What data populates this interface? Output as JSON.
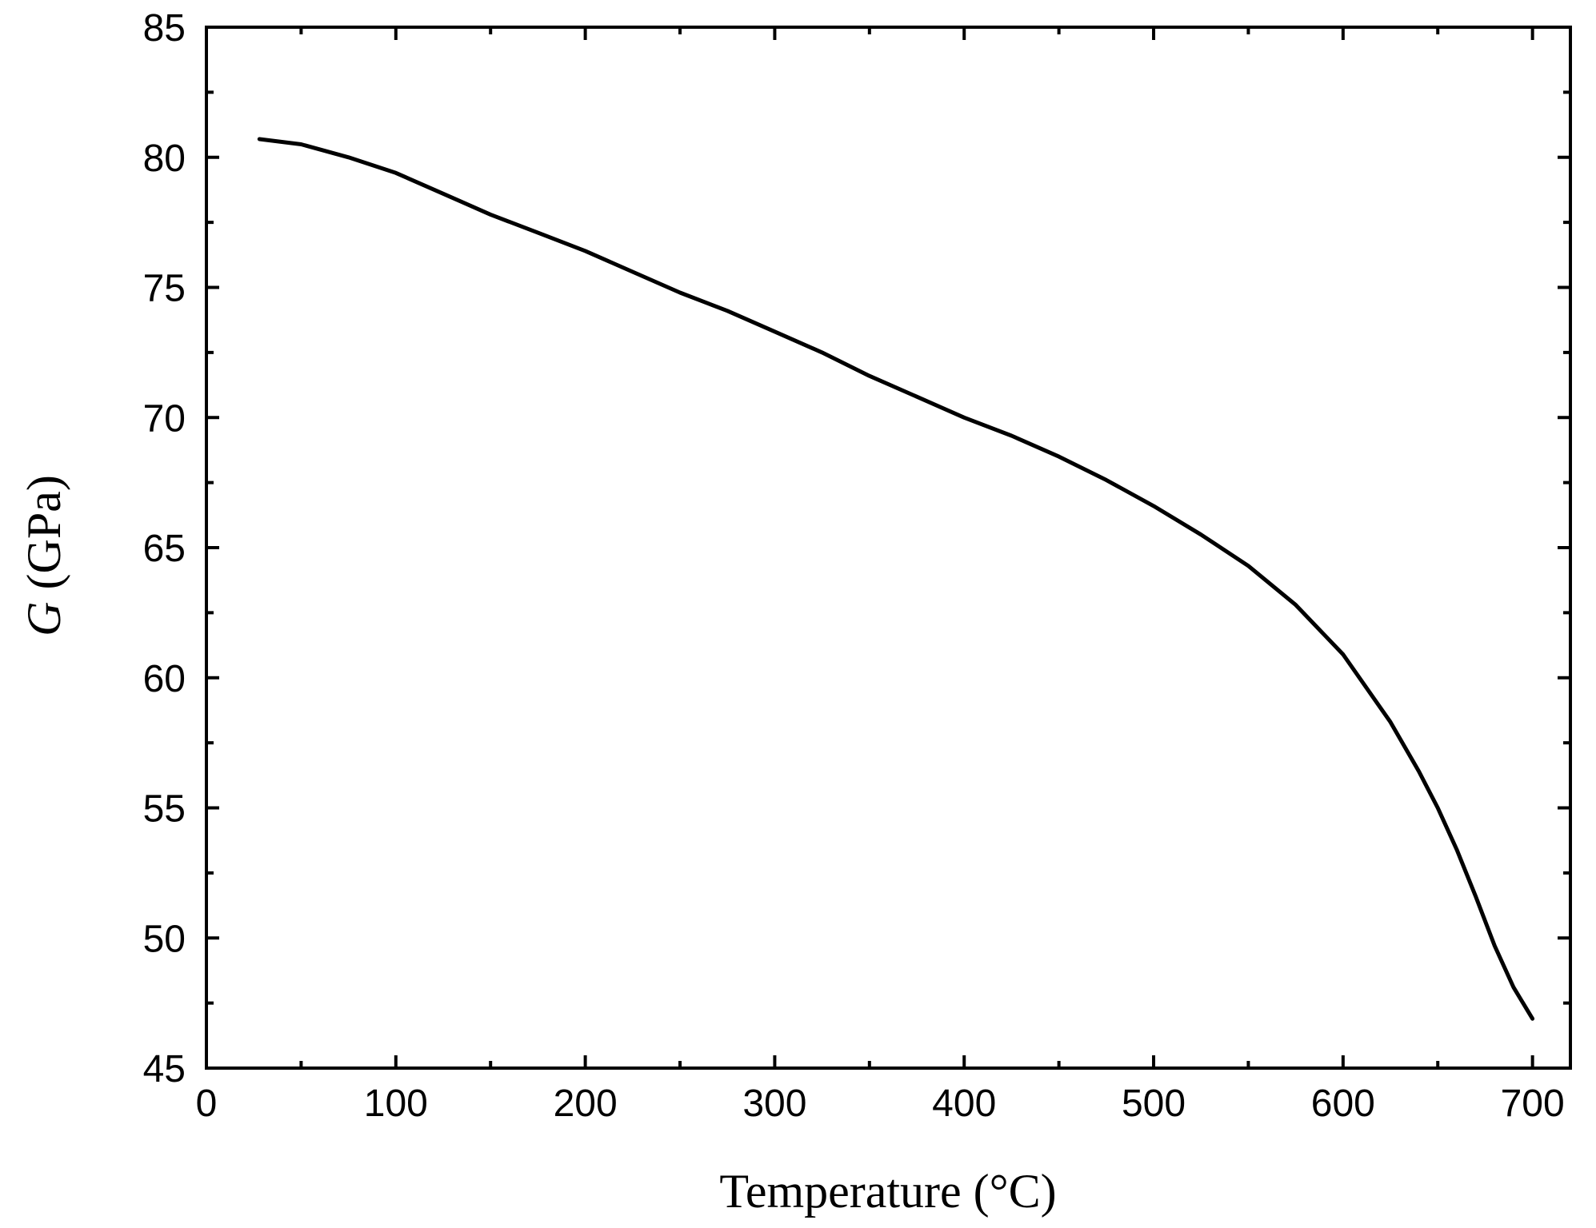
{
  "chart_data": {
    "type": "line",
    "title": "",
    "xlabel": "Temperature (°C)",
    "ylabel_symbol": "G",
    "ylabel_unit": " (GPa)",
    "xlim": [
      0,
      720
    ],
    "ylim": [
      45,
      85
    ],
    "x_ticks": [
      0,
      100,
      200,
      300,
      400,
      500,
      600,
      700
    ],
    "x_minor_ticks": [
      50,
      150,
      250,
      350,
      450,
      550,
      650
    ],
    "y_ticks": [
      45,
      50,
      55,
      60,
      65,
      70,
      75,
      80,
      85
    ],
    "y_minor_ticks": [
      47.5,
      52.5,
      57.5,
      62.5,
      67.5,
      72.5,
      77.5,
      82.5
    ],
    "grid": false,
    "legend": "none",
    "series": [
      {
        "color": "#000000",
        "x": [
          28,
          50,
          75,
          100,
          125,
          150,
          175,
          200,
          225,
          250,
          275,
          300,
          325,
          350,
          375,
          400,
          425,
          450,
          475,
          500,
          525,
          550,
          575,
          600,
          625,
          640,
          650,
          660,
          670,
          680,
          690,
          700
        ],
        "y": [
          80.7,
          80.5,
          80.0,
          79.4,
          78.6,
          77.8,
          77.1,
          76.4,
          75.6,
          74.8,
          74.1,
          73.3,
          72.5,
          71.6,
          70.8,
          70.0,
          69.3,
          68.5,
          67.6,
          66.6,
          65.5,
          64.3,
          62.8,
          60.9,
          58.3,
          56.4,
          55.0,
          53.4,
          51.6,
          49.7,
          48.1,
          46.9
        ]
      }
    ]
  }
}
